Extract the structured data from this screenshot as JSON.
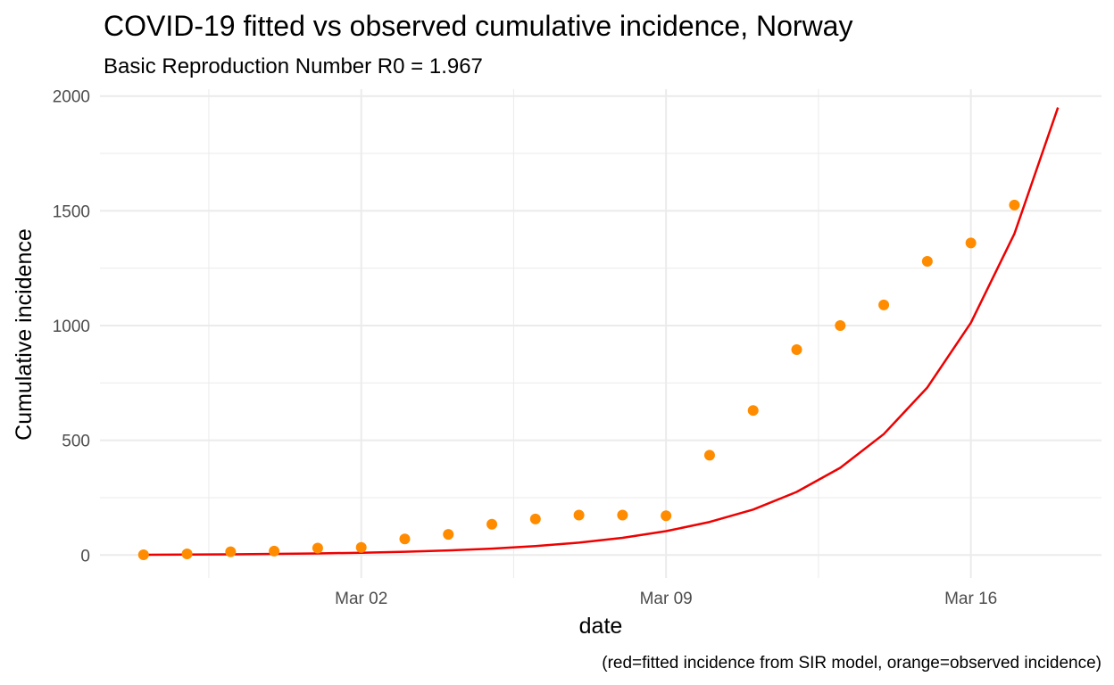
{
  "chart_data": {
    "type": "line",
    "title": "COVID-19 fitted vs observed cumulative incidence, Norway",
    "subtitle": "Basic Reproduction Number R0 = 1.967",
    "xlabel": "date",
    "ylabel": "Cumulative incidence",
    "caption": "(red=fitted incidence from SIR model, orange=observed incidence)",
    "x": [
      "2020-02-26",
      "2020-02-27",
      "2020-02-28",
      "2020-02-29",
      "2020-03-01",
      "2020-03-02",
      "2020-03-03",
      "2020-03-04",
      "2020-03-05",
      "2020-03-06",
      "2020-03-07",
      "2020-03-08",
      "2020-03-09",
      "2020-03-10",
      "2020-03-11",
      "2020-03-12",
      "2020-03-13",
      "2020-03-14",
      "2020-03-15",
      "2020-03-16",
      "2020-03-17",
      "2020-03-18"
    ],
    "series": [
      {
        "key": "fitted",
        "type": "line",
        "color": "#ee0000",
        "values": [
          1,
          2,
          3,
          5,
          7,
          10,
          14,
          20,
          28,
          39,
          54,
          75,
          104,
          144,
          198,
          275,
          380,
          527,
          730,
          1012,
          1400,
          1950
        ]
      },
      {
        "key": "observed",
        "type": "scatter",
        "color": "#ff8c00",
        "values": [
          1,
          5,
          14,
          17,
          30,
          33,
          70,
          90,
          134,
          157,
          174,
          174,
          171,
          435,
          630,
          895,
          1000,
          1090,
          1280,
          1360,
          1525
        ],
        "x": [
          "2020-02-26",
          "2020-02-27",
          "2020-02-28",
          "2020-02-29",
          "2020-03-01",
          "2020-03-02",
          "2020-03-03",
          "2020-03-04",
          "2020-03-05",
          "2020-03-06",
          "2020-03-07",
          "2020-03-08",
          "2020-03-09",
          "2020-03-10",
          "2020-03-11",
          "2020-03-12",
          "2020-03-13",
          "2020-03-14",
          "2020-03-15",
          "2020-03-16",
          "2020-03-17"
        ]
      }
    ],
    "x_ticks": [
      {
        "date": "2020-03-02",
        "label": "Mar 02"
      },
      {
        "date": "2020-03-09",
        "label": "Mar 09"
      },
      {
        "date": "2020-03-16",
        "label": "Mar 16"
      }
    ],
    "y_ticks": [
      0,
      500,
      1000,
      1500,
      2000
    ],
    "ylim": [
      -100,
      2030
    ],
    "xlim": [
      "2020-02-25",
      "2020-03-19"
    ],
    "grid": true,
    "legend": "none",
    "theme_color_grid": "#ebebeb"
  }
}
